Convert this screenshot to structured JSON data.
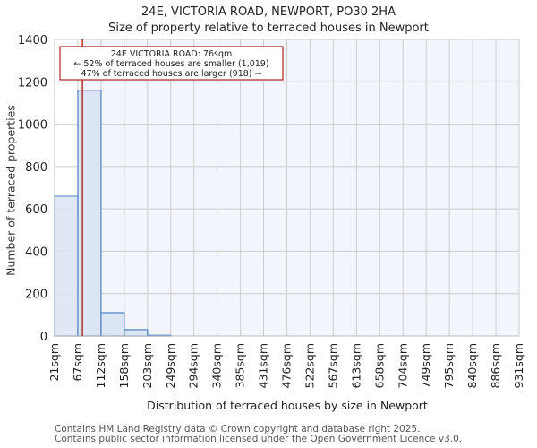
{
  "header": {
    "title": "24E, VICTORIA ROAD, NEWPORT, PO30 2HA",
    "subtitle": "Size of property relative to terraced houses in Newport"
  },
  "annotation": {
    "line1": "24E VICTORIA ROAD: 76sqm",
    "line2": "← 52% of terraced houses are smaller (1,019)",
    "line3": "47% of terraced houses are larger (918) →",
    "marker_value": 76,
    "color": "#b22222"
  },
  "footer": {
    "line1": "Contains HM Land Registry data © Crown copyright and database right 2025.",
    "line2": "Contains public sector information licensed under the Open Government Licence v3.0."
  },
  "colors": {
    "bar_fill": "#dbe5f4",
    "bar_stroke": "#5a8ac6",
    "plot_bg_right": "#f2f5fc",
    "grid": "#cccccc",
    "marker": "#b22222"
  },
  "chart_data": {
    "type": "bar",
    "title": "24E, VICTORIA ROAD, NEWPORT, PO30 2HA — Size of property relative to terraced houses in Newport",
    "xlabel": "Distribution of terraced houses by size in Newport",
    "ylabel": "Number of terraced properties",
    "ylim": [
      0,
      1400
    ],
    "yticks": [
      0,
      200,
      400,
      600,
      800,
      1000,
      1200,
      1400
    ],
    "grid": true,
    "categories": [
      "21sqm",
      "67sqm",
      "112sqm",
      "158sqm",
      "203sqm",
      "249sqm",
      "294sqm",
      "340sqm",
      "385sqm",
      "431sqm",
      "476sqm",
      "522sqm",
      "567sqm",
      "613sqm",
      "658sqm",
      "704sqm",
      "749sqm",
      "795sqm",
      "840sqm",
      "886sqm",
      "931sqm"
    ],
    "bin_edges": [
      21,
      67,
      112,
      158,
      203,
      249,
      294,
      340,
      385,
      431,
      476,
      522,
      567,
      613,
      658,
      704,
      749,
      795,
      840,
      886,
      931
    ],
    "values": [
      660,
      1160,
      110,
      30,
      3,
      0,
      0,
      0,
      0,
      0,
      0,
      0,
      0,
      0,
      0,
      0,
      0,
      0,
      0,
      0
    ],
    "marker": {
      "label": "24E VICTORIA ROAD: 76sqm",
      "x": 76
    }
  }
}
